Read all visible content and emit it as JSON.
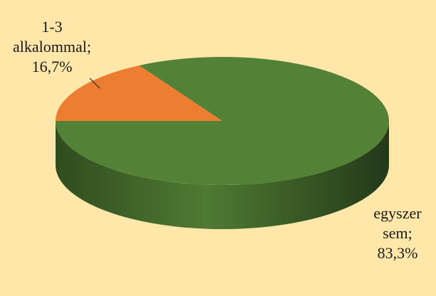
{
  "chart_data": {
    "type": "pie",
    "style": "3d",
    "slices": [
      {
        "label_lines": [
          "egyszer",
          "sem;",
          "83,3%"
        ],
        "value": 83.3,
        "color": "#538135",
        "side_color": "#3b5e26"
      },
      {
        "label_lines": [
          "1-3",
          "alkalommal;",
          "16,7%"
        ],
        "value": 16.7,
        "color": "#ed7d31",
        "side_color": "#b85f22"
      }
    ],
    "background": "#ffe7a9"
  }
}
